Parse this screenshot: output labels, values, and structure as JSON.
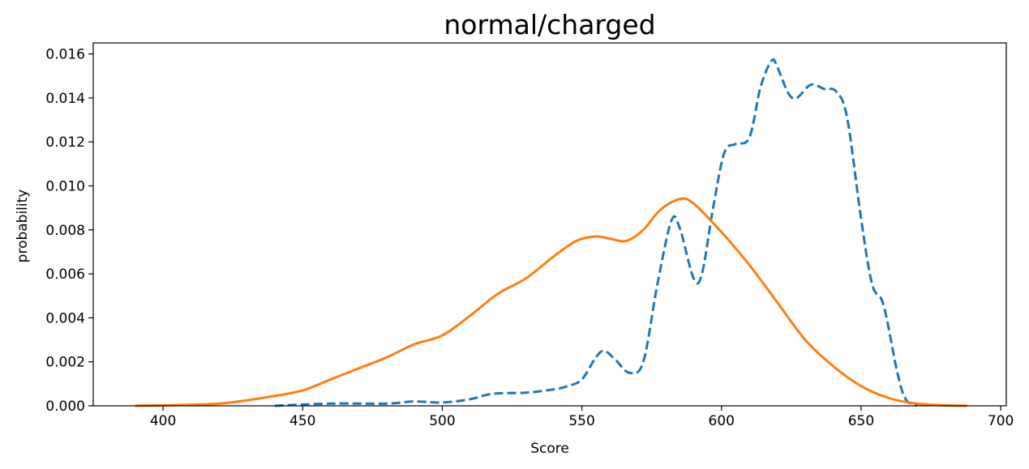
{
  "chart_data": {
    "type": "line",
    "title": "normal/charged",
    "xlabel": "Score",
    "ylabel": "probability",
    "xlim": [
      375,
      702
    ],
    "ylim": [
      0,
      0.0165
    ],
    "x_ticks": [
      400,
      450,
      500,
      550,
      600,
      650,
      700
    ],
    "x_tick_labels": [
      "400",
      "450",
      "500",
      "550",
      "600",
      "650",
      "700"
    ],
    "y_ticks": [
      0,
      0.002,
      0.004,
      0.006,
      0.008,
      0.01,
      0.012,
      0.014,
      0.016
    ],
    "y_tick_labels": [
      "0.000",
      "0.002",
      "0.004",
      "0.006",
      "0.008",
      "0.010",
      "0.012",
      "0.014",
      "0.016"
    ],
    "grid": false,
    "legend": "none",
    "series": [
      {
        "color": "#1f77b4",
        "style": "dashed",
        "x": [
          440,
          460,
          480,
          490,
          500,
          510,
          518,
          530,
          540,
          545,
          550,
          555,
          558,
          562,
          567,
          572,
          577,
          582,
          585,
          590,
          593,
          597,
          601,
          605,
          610,
          614,
          618,
          620,
          624,
          627,
          632,
          637,
          641,
          645,
          650,
          654,
          658,
          663,
          666,
          670
        ],
        "y": [
          0.0,
          0.0001,
          0.0001,
          0.0002,
          0.00015,
          0.0003,
          0.00055,
          0.0006,
          0.00075,
          0.0009,
          0.0012,
          0.0022,
          0.0025,
          0.0021,
          0.0015,
          0.002,
          0.0055,
          0.0084,
          0.0081,
          0.0058,
          0.006,
          0.009,
          0.0115,
          0.0119,
          0.0122,
          0.0145,
          0.0157,
          0.0154,
          0.0142,
          0.014,
          0.0146,
          0.0144,
          0.0143,
          0.0131,
          0.0085,
          0.0055,
          0.0046,
          0.0015,
          0.0003,
          0.0
        ]
      },
      {
        "color": "#ff7f0e",
        "style": "solid",
        "x": [
          390,
          400,
          410,
          420,
          430,
          440,
          450,
          460,
          470,
          480,
          490,
          500,
          510,
          520,
          530,
          540,
          548,
          555,
          560,
          566,
          572,
          578,
          585,
          590,
          600,
          610,
          620,
          630,
          640,
          650,
          660,
          670,
          680,
          688
        ],
        "y": [
          0.0,
          2e-05,
          5e-05,
          0.0001,
          0.00025,
          0.00045,
          0.0007,
          0.0012,
          0.0017,
          0.0022,
          0.0028,
          0.0032,
          0.0041,
          0.0051,
          0.0058,
          0.0068,
          0.0075,
          0.0077,
          0.0076,
          0.0075,
          0.008,
          0.0089,
          0.0094,
          0.0092,
          0.0079,
          0.0064,
          0.0047,
          0.003,
          0.0018,
          0.0009,
          0.00035,
          0.0001,
          2e-05,
          0.0
        ]
      }
    ]
  }
}
